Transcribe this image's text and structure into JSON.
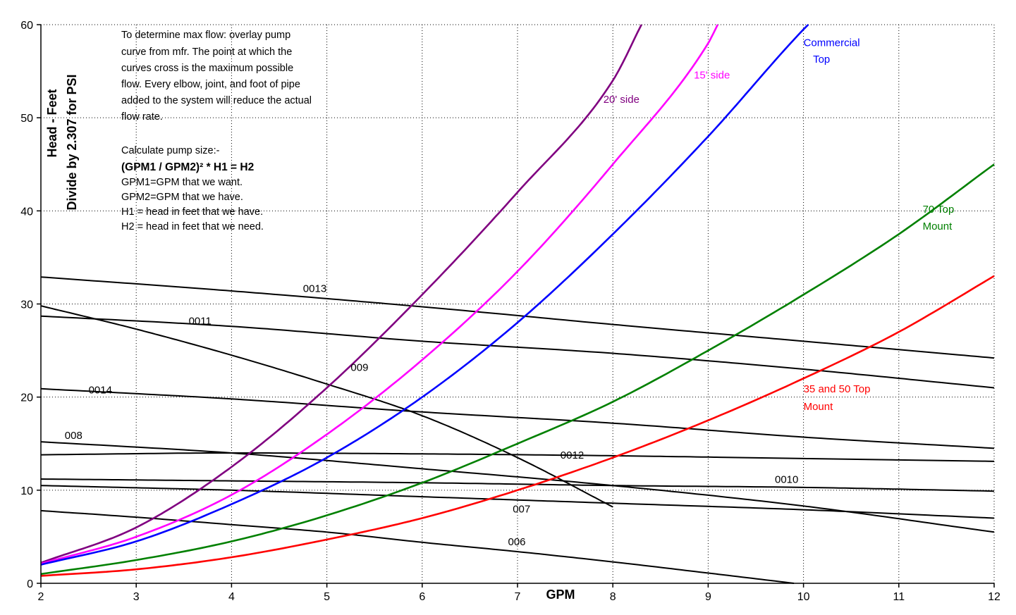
{
  "chart_data": {
    "type": "line",
    "title": "",
    "xlabel": "GPM",
    "ylabel": "Head - Feet",
    "ylabel2": "Divide by 2.307 for PSI",
    "xlim": [
      2,
      12
    ],
    "ylim": [
      0,
      60
    ],
    "xticks": [
      "2",
      "3",
      "4",
      "5",
      "6",
      "7",
      "8",
      "9",
      "10",
      "11",
      "12"
    ],
    "yticks": [
      "0",
      "10",
      "20",
      "30",
      "40",
      "50",
      "60"
    ],
    "grid": true,
    "notes": [
      "To determine max flow: overlay pump",
      "curve from mfr. The point at which the",
      "curves cross is the maximum possible",
      "flow. Every elbow, joint, and foot of pipe",
      "added to the system will reduce the actual",
      "flow rate.",
      "",
      "Calculate pump size:-",
      "(GPM1 / GPM2)²  * H1 = H2",
      "GPM1=GPM that we want.",
      "GPM2=GPM that we have.",
      "H1 = head in feet that we have.",
      "H2 = head in feet that we need."
    ],
    "system_curves": [
      {
        "name": "20' side",
        "color": "#800080",
        "x": [
          2,
          3,
          4,
          5,
          6,
          7,
          8,
          8.3
        ],
        "y": [
          2.2,
          6.0,
          12.5,
          21.0,
          31.0,
          42.0,
          54.0,
          60.0
        ]
      },
      {
        "name": "15' side",
        "color": "#ff00ff",
        "x": [
          2,
          3,
          4,
          5,
          6,
          7,
          8,
          9,
          9.1
        ],
        "y": [
          2.1,
          5.0,
          9.5,
          16.0,
          24.0,
          33.5,
          45.0,
          58.0,
          60.0
        ]
      },
      {
        "name": "Commercial Top",
        "color": "#0000ff",
        "x": [
          2,
          3,
          4,
          5,
          6,
          7,
          8,
          9,
          10,
          10.05
        ],
        "y": [
          2.0,
          4.5,
          8.5,
          13.5,
          20.0,
          28.0,
          37.5,
          48.0,
          59.5,
          60.0
        ]
      },
      {
        "name": "70 Top Mount",
        "color": "#008000",
        "x": [
          2,
          3,
          4,
          5,
          6,
          7,
          8,
          9,
          10,
          11,
          12
        ],
        "y": [
          1.0,
          2.5,
          4.5,
          7.3,
          10.8,
          15.0,
          19.5,
          25.0,
          31.0,
          37.5,
          45.0
        ]
      },
      {
        "name": "35 and 50 Top Mount",
        "color": "#ff0000",
        "x": [
          2,
          3,
          4,
          5,
          6,
          7,
          8,
          9,
          10,
          11,
          12
        ],
        "y": [
          0.8,
          1.5,
          2.8,
          4.7,
          7.0,
          10.0,
          13.5,
          17.5,
          22.0,
          27.0,
          33.0
        ]
      }
    ],
    "pump_curves": [
      {
        "name": "0013",
        "x": [
          2,
          4,
          6,
          8,
          10,
          12
        ],
        "y": [
          32.9,
          31.4,
          29.7,
          27.8,
          26.0,
          24.2
        ]
      },
      {
        "name": "0011",
        "x": [
          2,
          4,
          6,
          8,
          10,
          12
        ],
        "y": [
          28.7,
          27.6,
          26.0,
          24.7,
          23.0,
          21.0
        ]
      },
      {
        "name": "009",
        "x": [
          2,
          3,
          4,
          5,
          6,
          7,
          8
        ],
        "y": [
          29.8,
          27.3,
          24.5,
          21.4,
          18.0,
          13.5,
          8.2
        ]
      },
      {
        "name": "0014",
        "x": [
          2,
          4,
          6,
          8,
          10,
          12
        ],
        "y": [
          20.9,
          19.8,
          18.4,
          17.2,
          15.7,
          14.5
        ]
      },
      {
        "name": "008",
        "x": [
          2,
          4,
          6,
          8,
          10,
          12
        ],
        "y": [
          15.2,
          14.0,
          12.3,
          10.5,
          8.3,
          5.5
        ]
      },
      {
        "name": "0012",
        "x": [
          2,
          4,
          6,
          8,
          10,
          12
        ],
        "y": [
          13.8,
          14.0,
          13.9,
          13.7,
          13.4,
          13.1
        ]
      },
      {
        "name": "0010",
        "x": [
          2,
          4,
          6,
          8,
          10,
          12
        ],
        "y": [
          11.2,
          11.0,
          10.8,
          10.5,
          10.3,
          9.9
        ]
      },
      {
        "name": "007",
        "x": [
          2,
          4,
          6,
          8,
          10,
          12
        ],
        "y": [
          10.5,
          10.0,
          9.3,
          8.6,
          7.9,
          7.0
        ]
      },
      {
        "name": "006",
        "x": [
          2,
          3,
          4,
          5,
          6,
          7,
          8,
          9,
          9.9
        ],
        "y": [
          7.8,
          7.1,
          6.3,
          5.5,
          4.4,
          3.4,
          2.3,
          1.1,
          0.0
        ]
      }
    ]
  }
}
